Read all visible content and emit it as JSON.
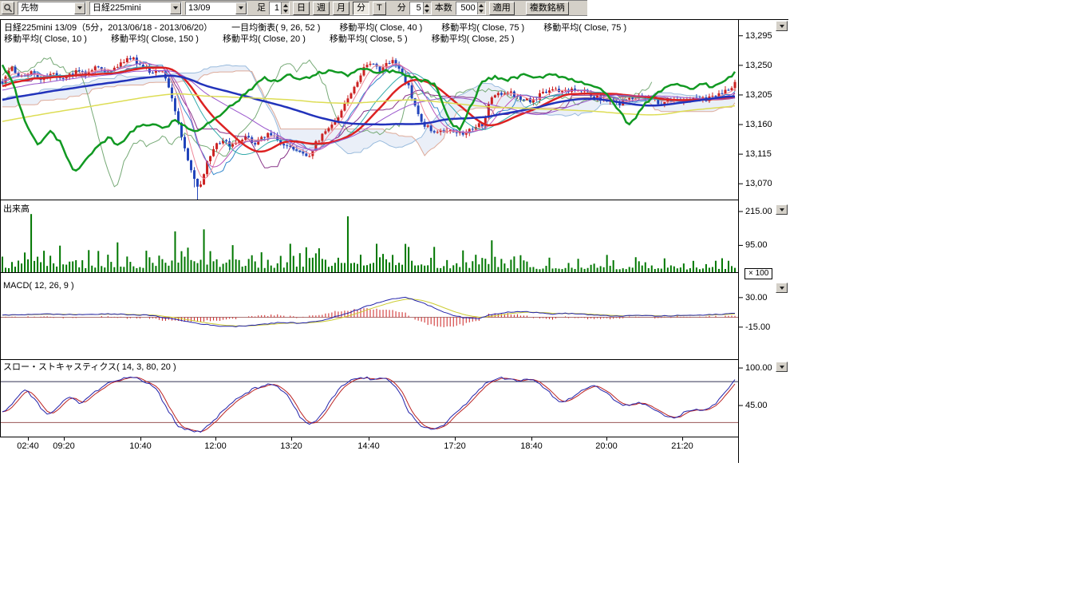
{
  "toolbar": {
    "selects": [
      "先物",
      "日経225mini",
      "13/09"
    ],
    "bar_label": "足",
    "bar_value": "1",
    "period_buttons": [
      "日",
      "週",
      "月",
      "分",
      "T"
    ],
    "active_period": "分",
    "minute_label": "分",
    "minute_value": "5",
    "count_label": "本数",
    "count_value": "500",
    "apply_label": "適用",
    "multi_symbol_label": "複数銘柄"
  },
  "legend": {
    "line1": [
      "日経225mini 13/09（5分，2013/06/18 - 2013/06/20）",
      "一目均衡表( 9, 26, 52 )",
      "移動平均( Close, 40 )",
      "移動平均( Close, 75 )",
      "移動平均( Close, 75 )"
    ],
    "line2": [
      "移動平均( Close, 10 )",
      "移動平均( Close, 150 )",
      "移動平均( Close, 20 )",
      "移動平均( Close, 5 )",
      "移動平均( Close, 25 )"
    ]
  },
  "panels": {
    "price": {
      "axis_labels": [
        "13,295",
        "13,250",
        "13,205",
        "13,160",
        "13,115",
        "13,070"
      ]
    },
    "volume": {
      "title": "出来高",
      "axis_labels": [
        "215.00",
        "95.00"
      ],
      "multiplier": "× 100"
    },
    "macd": {
      "title": "MACD( 12, 26, 9 )",
      "axis_labels": [
        "30.00",
        "-15.00"
      ]
    },
    "stoch": {
      "title": "スロー・ストキャスティクス( 14, 3, 80, 20 )",
      "axis_labels": [
        "100.00",
        "45.00"
      ]
    }
  },
  "time_axis": [
    "02:40",
    "09:20",
    "10:40",
    "12:00",
    "13:20",
    "14:40",
    "17:20",
    "18:40",
    "20:00",
    "21:20"
  ],
  "chart_data": {
    "type": "candlestick",
    "instrument": "日経225mini 13/09",
    "interval": "5分",
    "date_range": "2013/06/18 - 2013/06/20",
    "price": {
      "ylim": [
        13046,
        13319
      ],
      "axis_ticks": [
        13295,
        13250,
        13205,
        13160,
        13115,
        13070
      ],
      "up_color": "#cc2222",
      "down_color": "#2244bb",
      "close_keypoints": [
        [
          0.0,
          13225
        ],
        [
          0.012,
          13245
        ],
        [
          0.025,
          13232
        ],
        [
          0.04,
          13240
        ],
        [
          0.055,
          13228
        ],
        [
          0.07,
          13238
        ],
        [
          0.085,
          13230
        ],
        [
          0.1,
          13242
        ],
        [
          0.115,
          13236
        ],
        [
          0.13,
          13248
        ],
        [
          0.145,
          13240
        ],
        [
          0.16,
          13252
        ],
        [
          0.175,
          13262
        ],
        [
          0.19,
          13248
        ],
        [
          0.205,
          13240
        ],
        [
          0.218,
          13245
        ],
        [
          0.228,
          13215
        ],
        [
          0.24,
          13165
        ],
        [
          0.252,
          13110
        ],
        [
          0.262,
          13075
        ],
        [
          0.27,
          13062
        ],
        [
          0.28,
          13105
        ],
        [
          0.29,
          13128
        ],
        [
          0.3,
          13135
        ],
        [
          0.315,
          13128
        ],
        [
          0.33,
          13140
        ],
        [
          0.345,
          13132
        ],
        [
          0.36,
          13145
        ],
        [
          0.375,
          13138
        ],
        [
          0.39,
          13125
        ],
        [
          0.405,
          13118
        ],
        [
          0.416,
          13108
        ],
        [
          0.43,
          13135
        ],
        [
          0.445,
          13155
        ],
        [
          0.46,
          13175
        ],
        [
          0.475,
          13205
        ],
        [
          0.49,
          13240
        ],
        [
          0.505,
          13258
        ],
        [
          0.515,
          13242
        ],
        [
          0.525,
          13252
        ],
        [
          0.535,
          13260
        ],
        [
          0.545,
          13235
        ],
        [
          0.555,
          13215
        ],
        [
          0.565,
          13185
        ],
        [
          0.575,
          13160
        ],
        [
          0.585,
          13152
        ],
        [
          0.6,
          13150
        ],
        [
          0.615,
          13152
        ],
        [
          0.63,
          13148
        ],
        [
          0.645,
          13155
        ],
        [
          0.658,
          13162
        ],
        [
          0.666,
          13198
        ],
        [
          0.675,
          13205
        ],
        [
          0.69,
          13210
        ],
        [
          0.705,
          13202
        ],
        [
          0.72,
          13195
        ],
        [
          0.735,
          13205
        ],
        [
          0.75,
          13212
        ],
        [
          0.765,
          13208
        ],
        [
          0.78,
          13215
        ],
        [
          0.795,
          13210
        ],
        [
          0.81,
          13202
        ],
        [
          0.825,
          13196
        ],
        [
          0.84,
          13192
        ],
        [
          0.855,
          13198
        ],
        [
          0.87,
          13205
        ],
        [
          0.885,
          13198
        ],
        [
          0.9,
          13193
        ],
        [
          0.915,
          13200
        ],
        [
          0.93,
          13196
        ],
        [
          0.945,
          13203
        ],
        [
          0.96,
          13198
        ],
        [
          0.975,
          13205
        ],
        [
          0.99,
          13215
        ],
        [
          1.0,
          13222
        ]
      ]
    },
    "green_overlay": {
      "color": "#119922",
      "keypoints": [
        [
          0.0,
          13250
        ],
        [
          0.012,
          13232
        ],
        [
          0.03,
          13165
        ],
        [
          0.05,
          13128
        ],
        [
          0.065,
          13150
        ],
        [
          0.08,
          13132
        ],
        [
          0.095,
          13095
        ],
        [
          0.103,
          13088
        ],
        [
          0.115,
          13108
        ],
        [
          0.13,
          13125
        ],
        [
          0.145,
          13140
        ],
        [
          0.16,
          13128
        ],
        [
          0.175,
          13150
        ],
        [
          0.19,
          13158
        ],
        [
          0.205,
          13162
        ],
        [
          0.22,
          13155
        ],
        [
          0.235,
          13165
        ],
        [
          0.25,
          13158
        ],
        [
          0.265,
          13148
        ],
        [
          0.28,
          13162
        ],
        [
          0.3,
          13178
        ],
        [
          0.32,
          13195
        ],
        [
          0.34,
          13215
        ],
        [
          0.357,
          13232
        ],
        [
          0.375,
          13225
        ],
        [
          0.39,
          13235
        ],
        [
          0.41,
          13228
        ],
        [
          0.43,
          13238
        ],
        [
          0.45,
          13242
        ],
        [
          0.47,
          13235
        ],
        [
          0.49,
          13245
        ],
        [
          0.51,
          13238
        ],
        [
          0.53,
          13242
        ],
        [
          0.55,
          13235
        ],
        [
          0.57,
          13228
        ],
        [
          0.59,
          13222
        ],
        [
          0.61,
          13165
        ],
        [
          0.625,
          13152
        ],
        [
          0.64,
          13190
        ],
        [
          0.655,
          13225
        ],
        [
          0.67,
          13232
        ],
        [
          0.69,
          13228
        ],
        [
          0.71,
          13235
        ],
        [
          0.73,
          13230
        ],
        [
          0.75,
          13238
        ],
        [
          0.77,
          13230
        ],
        [
          0.79,
          13225
        ],
        [
          0.81,
          13218
        ],
        [
          0.825,
          13205
        ],
        [
          0.84,
          13185
        ],
        [
          0.855,
          13158
        ],
        [
          0.865,
          13172
        ],
        [
          0.88,
          13195
        ],
        [
          0.895,
          13210
        ],
        [
          0.91,
          13218
        ],
        [
          0.925,
          13222
        ],
        [
          0.94,
          13215
        ],
        [
          0.955,
          13222
        ],
        [
          0.97,
          13218
        ],
        [
          0.985,
          13225
        ],
        [
          1.0,
          13238
        ]
      ]
    },
    "moving_averages": [
      {
        "window": 5,
        "color": "#ee8899",
        "width": 1
      },
      {
        "window": 10,
        "color": "#bb55bb",
        "width": 1
      },
      {
        "window": 20,
        "color": "#33aaaa",
        "width": 1
      },
      {
        "window": 25,
        "color": "#dd2222",
        "width": 2.5
      },
      {
        "window": 40,
        "color": "#9955cc",
        "width": 1
      },
      {
        "window": 75,
        "color": "#2233bb",
        "width": 2.5
      },
      {
        "window": 150,
        "color": "#dddd55",
        "width": 1.5
      }
    ],
    "ichimoku": {
      "params": [
        9,
        26,
        52
      ],
      "tenkan_color": "#3388cc",
      "kijun_color": "#883388",
      "senkou_a_color": "#99bbdd",
      "senkou_b_color": "#ddaa99",
      "chikou_color": "#77aa77",
      "cloud_color": "rgba(150,175,220,0.20)"
    },
    "volume": {
      "ylim": [
        0,
        255
      ],
      "axis_ticks": [
        215,
        95
      ],
      "color": "#007700",
      "profile_keypoints": [
        [
          0.0,
          60
        ],
        [
          0.02,
          80
        ],
        [
          0.04,
          215
        ],
        [
          0.055,
          130
        ],
        [
          0.07,
          95
        ],
        [
          0.09,
          85
        ],
        [
          0.11,
          75
        ],
        [
          0.13,
          90
        ],
        [
          0.15,
          100
        ],
        [
          0.17,
          85
        ],
        [
          0.19,
          80
        ],
        [
          0.21,
          95
        ],
        [
          0.23,
          140
        ],
        [
          0.25,
          160
        ],
        [
          0.27,
          185
        ],
        [
          0.285,
          140
        ],
        [
          0.3,
          100
        ],
        [
          0.32,
          85
        ],
        [
          0.34,
          95
        ],
        [
          0.36,
          80
        ],
        [
          0.38,
          90
        ],
        [
          0.4,
          100
        ],
        [
          0.416,
          120
        ],
        [
          0.43,
          90
        ],
        [
          0.45,
          110
        ],
        [
          0.465,
          205
        ],
        [
          0.48,
          150
        ],
        [
          0.5,
          120
        ],
        [
          0.515,
          100
        ],
        [
          0.53,
          130
        ],
        [
          0.545,
          110
        ],
        [
          0.56,
          120
        ],
        [
          0.575,
          95
        ],
        [
          0.59,
          80
        ],
        [
          0.61,
          70
        ],
        [
          0.63,
          75
        ],
        [
          0.65,
          80
        ],
        [
          0.666,
          110
        ],
        [
          0.68,
          85
        ],
        [
          0.7,
          70
        ],
        [
          0.72,
          60
        ],
        [
          0.74,
          55
        ],
        [
          0.76,
          60
        ],
        [
          0.78,
          50
        ],
        [
          0.8,
          55
        ],
        [
          0.82,
          60
        ],
        [
          0.84,
          55
        ],
        [
          0.86,
          60
        ],
        [
          0.88,
          50
        ],
        [
          0.9,
          45
        ],
        [
          0.92,
          50
        ],
        [
          0.94,
          42
        ],
        [
          0.96,
          48
        ],
        [
          0.98,
          55
        ],
        [
          1.0,
          75
        ]
      ]
    },
    "macd": {
      "axis_ticks": [
        30,
        -15
      ],
      "line_color": "#2222aa",
      "signal_color": "#cccc33",
      "hist_color": "#cc2222",
      "zero_color": "#aa7777",
      "keypoints": [
        [
          0.0,
          3
        ],
        [
          0.05,
          5
        ],
        [
          0.1,
          4
        ],
        [
          0.15,
          5
        ],
        [
          0.2,
          3
        ],
        [
          0.23,
          -2
        ],
        [
          0.26,
          -8
        ],
        [
          0.29,
          -13
        ],
        [
          0.32,
          -14
        ],
        [
          0.35,
          -11
        ],
        [
          0.38,
          -8
        ],
        [
          0.41,
          -9
        ],
        [
          0.44,
          -4
        ],
        [
          0.47,
          6
        ],
        [
          0.5,
          18
        ],
        [
          0.53,
          28
        ],
        [
          0.55,
          30
        ],
        [
          0.57,
          24
        ],
        [
          0.59,
          14
        ],
        [
          0.61,
          5
        ],
        [
          0.63,
          -1
        ],
        [
          0.65,
          -2
        ],
        [
          0.666,
          4
        ],
        [
          0.69,
          8
        ],
        [
          0.71,
          9
        ],
        [
          0.73,
          7
        ],
        [
          0.75,
          5
        ],
        [
          0.77,
          6
        ],
        [
          0.79,
          5
        ],
        [
          0.81,
          3
        ],
        [
          0.83,
          2
        ],
        [
          0.85,
          2
        ],
        [
          0.87,
          3
        ],
        [
          0.89,
          2
        ],
        [
          0.91,
          2
        ],
        [
          0.93,
          3
        ],
        [
          0.95,
          3
        ],
        [
          0.97,
          4
        ],
        [
          1.0,
          6
        ]
      ]
    },
    "stoch": {
      "axis_ticks": [
        100,
        45
      ],
      "levels": [
        80,
        20
      ],
      "k_color": "#2222aa",
      "d_color": "#bb2222",
      "level_high_color": "#333355",
      "level_low_color": "#995555",
      "keypoints": [
        [
          0.0,
          35
        ],
        [
          0.015,
          50
        ],
        [
          0.03,
          68
        ],
        [
          0.045,
          55
        ],
        [
          0.06,
          30
        ],
        [
          0.075,
          42
        ],
        [
          0.09,
          58
        ],
        [
          0.105,
          48
        ],
        [
          0.12,
          60
        ],
        [
          0.135,
          72
        ],
        [
          0.15,
          80
        ],
        [
          0.165,
          86
        ],
        [
          0.18,
          88
        ],
        [
          0.195,
          80
        ],
        [
          0.21,
          70
        ],
        [
          0.225,
          40
        ],
        [
          0.24,
          15
        ],
        [
          0.255,
          8
        ],
        [
          0.27,
          6
        ],
        [
          0.285,
          20
        ],
        [
          0.3,
          35
        ],
        [
          0.315,
          50
        ],
        [
          0.33,
          62
        ],
        [
          0.345,
          70
        ],
        [
          0.36,
          76
        ],
        [
          0.375,
          72
        ],
        [
          0.39,
          60
        ],
        [
          0.405,
          30
        ],
        [
          0.42,
          15
        ],
        [
          0.435,
          30
        ],
        [
          0.45,
          55
        ],
        [
          0.465,
          75
        ],
        [
          0.48,
          84
        ],
        [
          0.495,
          86
        ],
        [
          0.51,
          82
        ],
        [
          0.525,
          86
        ],
        [
          0.54,
          70
        ],
        [
          0.555,
          35
        ],
        [
          0.57,
          14
        ],
        [
          0.585,
          10
        ],
        [
          0.6,
          15
        ],
        [
          0.615,
          30
        ],
        [
          0.63,
          45
        ],
        [
          0.645,
          60
        ],
        [
          0.66,
          78
        ],
        [
          0.675,
          86
        ],
        [
          0.69,
          84
        ],
        [
          0.705,
          80
        ],
        [
          0.72,
          84
        ],
        [
          0.735,
          76
        ],
        [
          0.75,
          60
        ],
        [
          0.765,
          48
        ],
        [
          0.78,
          58
        ],
        [
          0.795,
          70
        ],
        [
          0.81,
          74
        ],
        [
          0.825,
          62
        ],
        [
          0.84,
          50
        ],
        [
          0.855,
          44
        ],
        [
          0.87,
          50
        ],
        [
          0.885,
          40
        ],
        [
          0.9,
          32
        ],
        [
          0.915,
          26
        ],
        [
          0.93,
          34
        ],
        [
          0.945,
          40
        ],
        [
          0.96,
          38
        ],
        [
          0.975,
          48
        ],
        [
          0.99,
          70
        ],
        [
          1.0,
          84
        ]
      ]
    }
  }
}
